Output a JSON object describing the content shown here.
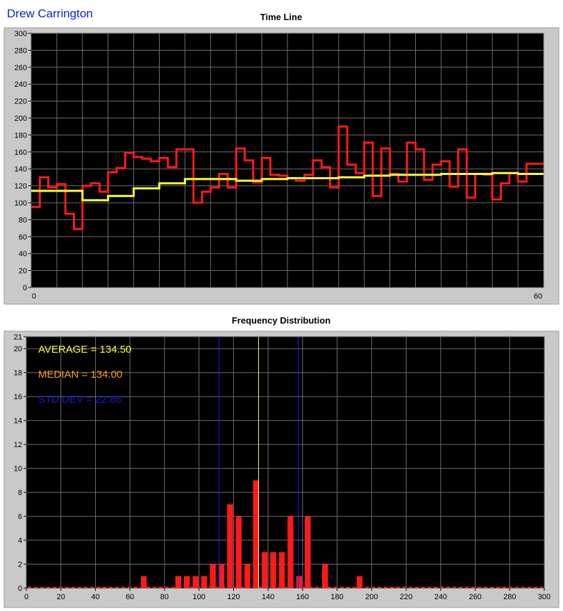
{
  "user_name": "Drew Carrington",
  "chart_data": [
    {
      "type": "line",
      "title": "Time Line",
      "xlabel": "",
      "ylabel": "",
      "xlim": [
        0,
        60
      ],
      "ylim": [
        0,
        300
      ],
      "y_ticks": [
        0,
        20,
        40,
        60,
        80,
        100,
        120,
        140,
        160,
        180,
        200,
        220,
        240,
        260,
        280,
        300
      ],
      "x_tick_labels": [
        "0",
        "60"
      ],
      "grid": true,
      "background": "#000000",
      "series": [
        {
          "color": "#ff1a1a",
          "step": true,
          "values": [
            95,
            130,
            118,
            122,
            87,
            69,
            120,
            123,
            113,
            136,
            141,
            159,
            154,
            152,
            149,
            153,
            142,
            163,
            163,
            100,
            113,
            118,
            134,
            118,
            164,
            150,
            124,
            153,
            133,
            132,
            129,
            126,
            133,
            150,
            142,
            118,
            190,
            145,
            135,
            171,
            108,
            164,
            134,
            125,
            171,
            163,
            127,
            145,
            149,
            119,
            163,
            106,
            134,
            133,
            104,
            123,
            135,
            125,
            146,
            146
          ]
        },
        {
          "color": "#ffff33",
          "step": true,
          "values": [
            114,
            114,
            114,
            114,
            114,
            114,
            103,
            103,
            103,
            108,
            108,
            108,
            117,
            117,
            117,
            123,
            123,
            123,
            128,
            128,
            128,
            128,
            128,
            128,
            126,
            126,
            126,
            128,
            128,
            128,
            129,
            129,
            129,
            129,
            129,
            129,
            130,
            130,
            130,
            132,
            132,
            132,
            133,
            133,
            133,
            133,
            133,
            133,
            134,
            134,
            134,
            134,
            134,
            134,
            135,
            135,
            135,
            134,
            134,
            134
          ]
        }
      ]
    },
    {
      "type": "bar",
      "title": "Frequency Distribution",
      "xlabel": "",
      "ylabel": "",
      "xlim": [
        0,
        300
      ],
      "ylim": [
        0,
        21
      ],
      "x_ticks": [
        0,
        20,
        40,
        60,
        80,
        100,
        120,
        140,
        160,
        180,
        200,
        220,
        240,
        260,
        280,
        300
      ],
      "y_ticks": [
        0,
        2,
        4,
        6,
        8,
        10,
        12,
        14,
        16,
        18,
        20,
        21
      ],
      "grid": true,
      "background": "#000000",
      "bar_color": "#ff1a1a",
      "bars": [
        {
          "x": 68,
          "count": 1
        },
        {
          "x": 88,
          "count": 1
        },
        {
          "x": 93,
          "count": 1
        },
        {
          "x": 98,
          "count": 1
        },
        {
          "x": 103,
          "count": 1
        },
        {
          "x": 108,
          "count": 2
        },
        {
          "x": 113,
          "count": 2
        },
        {
          "x": 118,
          "count": 7
        },
        {
          "x": 123,
          "count": 6
        },
        {
          "x": 128,
          "count": 2
        },
        {
          "x": 133,
          "count": 9
        },
        {
          "x": 138,
          "count": 3
        },
        {
          "x": 143,
          "count": 3
        },
        {
          "x": 148,
          "count": 3
        },
        {
          "x": 153,
          "count": 6
        },
        {
          "x": 158,
          "count": 1
        },
        {
          "x": 163,
          "count": 6
        },
        {
          "x": 173,
          "count": 2
        },
        {
          "x": 193,
          "count": 1
        }
      ],
      "reference_lines": [
        {
          "x": 111.6,
          "color": "#1a1aff"
        },
        {
          "x": 134.5,
          "color": "#ffff66"
        },
        {
          "x": 157.4,
          "color": "#1a1aff"
        }
      ],
      "annotations": [
        {
          "text": "AVERAGE = 134.50",
          "color": "#ffff33"
        },
        {
          "text": "MEDIAN = 134.00",
          "color": "#ff9a1a"
        },
        {
          "text": "STD DEV = 22.86",
          "color": "#1a1ad0"
        }
      ]
    }
  ]
}
